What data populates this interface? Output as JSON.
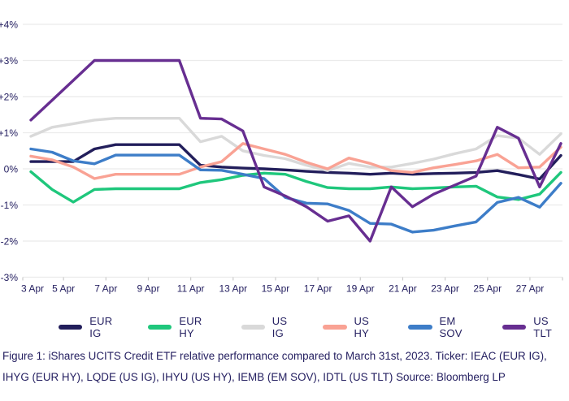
{
  "chart_data": {
    "type": "line",
    "title": "",
    "xlabel": "",
    "ylabel": "",
    "ylim": [
      -3,
      4
    ],
    "grid": true,
    "legend_position": "bottom",
    "y_ticks": [
      4,
      3,
      2,
      1,
      0,
      -1,
      -2,
      -3
    ],
    "y_tick_labels": [
      "+4%",
      "+3%",
      "+2%",
      "+1%",
      "0%",
      "-1%",
      "-2%",
      "-3%"
    ],
    "x": [
      "3 Apr",
      "4 Apr",
      "5 Apr",
      "6 Apr",
      "7 Apr",
      "8 Apr",
      "9 Apr",
      "10 Apr",
      "11 Apr",
      "12 Apr",
      "13 Apr",
      "14 Apr",
      "15 Apr",
      "16 Apr",
      "17 Apr",
      "18 Apr",
      "19 Apr",
      "20 Apr",
      "21 Apr",
      "22 Apr",
      "23 Apr",
      "24 Apr",
      "25 Apr",
      "26 Apr",
      "27 Apr",
      "28 Apr"
    ],
    "x_tick_labels": [
      "3 Apr",
      "5 Apr",
      "7 Apr",
      "9 Apr",
      "11 Apr",
      "13 Apr",
      "15 Apr",
      "17 Apr",
      "19 Apr",
      "21 Apr",
      "23 Apr",
      "25 Apr",
      "27 Apr"
    ],
    "series": [
      {
        "name": "EUR IG",
        "color": "#221e5b",
        "values": [
          0.2,
          0.2,
          0.2,
          0.55,
          0.67,
          0.67,
          0.67,
          0.67,
          0.1,
          0.05,
          0.02,
          0.0,
          -0.03,
          -0.07,
          -0.1,
          -0.12,
          -0.15,
          -0.12,
          -0.15,
          -0.13,
          -0.12,
          -0.1,
          -0.05,
          -0.16,
          -0.28,
          0.37
        ]
      },
      {
        "name": "EUR HY",
        "color": "#1fc77c",
        "values": [
          -0.08,
          -0.57,
          -0.92,
          -0.57,
          -0.55,
          -0.55,
          -0.55,
          -0.55,
          -0.38,
          -0.3,
          -0.18,
          -0.12,
          -0.15,
          -0.35,
          -0.52,
          -0.55,
          -0.55,
          -0.5,
          -0.55,
          -0.53,
          -0.5,
          -0.48,
          -0.78,
          -0.85,
          -0.7,
          -0.1
        ]
      },
      {
        "name": "US IG",
        "color": "#d9d9d9",
        "values": [
          0.9,
          1.15,
          1.25,
          1.35,
          1.4,
          1.4,
          1.4,
          1.4,
          0.75,
          0.9,
          0.5,
          0.37,
          0.28,
          0.1,
          -0.05,
          0.15,
          0.05,
          0.05,
          0.15,
          0.27,
          0.42,
          0.55,
          0.92,
          0.85,
          0.4,
          0.97
        ]
      },
      {
        "name": "US HY",
        "color": "#f9a294",
        "values": [
          0.35,
          0.25,
          0.05,
          -0.27,
          -0.15,
          -0.15,
          -0.15,
          -0.15,
          0.05,
          0.2,
          0.7,
          0.55,
          0.4,
          0.18,
          0.0,
          0.3,
          0.15,
          -0.05,
          -0.1,
          0.03,
          0.12,
          0.22,
          0.4,
          0.03,
          0.05,
          0.6
        ]
      },
      {
        "name": "EM SOV",
        "color": "#3d7dc8",
        "values": [
          0.55,
          0.46,
          0.22,
          0.14,
          0.38,
          0.38,
          0.38,
          0.38,
          -0.03,
          -0.04,
          -0.15,
          -0.27,
          -0.79,
          -0.95,
          -0.97,
          -1.15,
          -1.51,
          -1.53,
          -1.75,
          -1.7,
          -1.58,
          -1.47,
          -0.93,
          -0.79,
          -1.06,
          -0.4
        ]
      },
      {
        "name": "US TLT",
        "color": "#672e91",
        "values": [
          1.35,
          1.9,
          2.45,
          3.0,
          3.0,
          3.0,
          3.0,
          3.0,
          1.4,
          1.38,
          1.05,
          -0.5,
          -0.75,
          -1.05,
          -1.45,
          -1.3,
          -2.0,
          -0.5,
          -1.05,
          -0.7,
          -0.45,
          -0.2,
          1.15,
          0.85,
          -0.5,
          0.7
        ]
      }
    ]
  },
  "caption": {
    "text": "Figure 1: iShares UCITS Credit ETF relative performance compared to March 31st, 2023. Ticker: IEAC (EUR IG), IHYG (EUR HY), LQDE (US IG), IHYU (US HY), IEMB (EM SOV), IDTL (US TLT) Source: Bloomberg LP"
  },
  "colors": {
    "text": "#252061",
    "gridline": "#ebebeb",
    "tick": "#cccccc",
    "background": "#ffffff"
  }
}
